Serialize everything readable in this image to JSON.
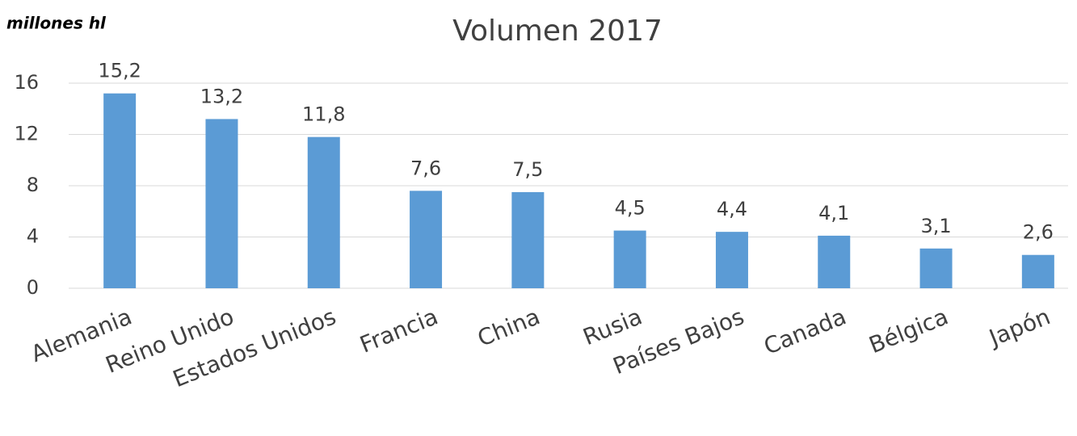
{
  "chart_data": {
    "type": "bar",
    "title": "Volumen 2017",
    "y_axis_label": "millones hl",
    "categories": [
      "Alemania",
      "Reino Unido",
      "Estados Unidos",
      "Francia",
      "China",
      "Rusia",
      "Países Bajos",
      "Canada",
      "Bélgica",
      "Japón"
    ],
    "values": [
      15.2,
      13.2,
      11.8,
      7.6,
      7.5,
      4.5,
      4.4,
      4.1,
      3.1,
      2.6
    ],
    "value_labels": [
      "15,2",
      "13,2",
      "11,8",
      "7,6",
      "7,5",
      "4,5",
      "4,4",
      "4,1",
      "3,1",
      "2,6"
    ],
    "color": "#5b9bd5",
    "ylim": [
      0,
      16
    ],
    "yticks": [
      0,
      4,
      8,
      12,
      16
    ],
    "grid": true
  }
}
